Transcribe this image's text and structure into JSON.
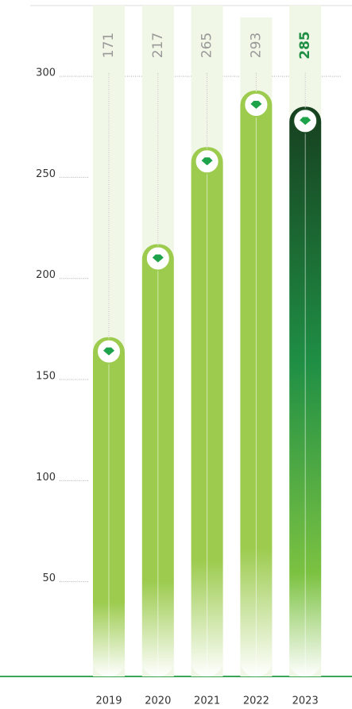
{
  "chart_data": {
    "type": "bar",
    "categories": [
      "2019",
      "2020",
      "2021",
      "2022",
      "2023"
    ],
    "values": [
      171,
      217,
      265,
      293,
      285
    ],
    "color": "#9ccb4e",
    "highlight_color": "#1f8f45",
    "ylim": [
      0,
      335
    ],
    "yticks": [
      50,
      100,
      150,
      200,
      250,
      300
    ],
    "grid": true
  }
}
